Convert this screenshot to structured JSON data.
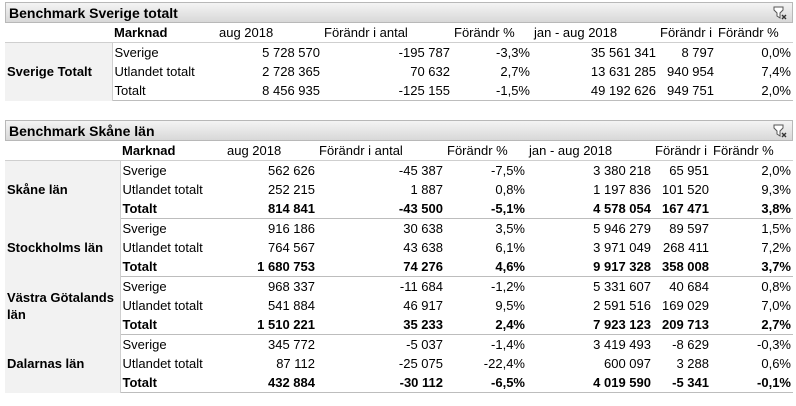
{
  "panel1": {
    "title": "Benchmark Sverige totalt",
    "headers": [
      "Marknad",
      "aug 2018",
      "Förändr i antal",
      "Förändr %",
      "jan - aug 2018",
      "Förändr i antal",
      "Förändr %"
    ],
    "section": "Sverige Totalt",
    "rows": [
      {
        "marknad": "Sverige",
        "c1": "5 728 570",
        "c2": "-195 787",
        "c3": "-3,3%",
        "c4": "35 561 341",
        "c5": "8 797",
        "c6": "0,0%"
      },
      {
        "marknad": "Utlandet totalt",
        "c1": "2 728 365",
        "c2": "70 632",
        "c3": "2,7%",
        "c4": "13 631 285",
        "c5": "940 954",
        "c6": "7,4%"
      },
      {
        "marknad": "Totalt",
        "c1": "8 456 935",
        "c2": "-125 155",
        "c3": "-1,5%",
        "c4": "49 192 626",
        "c5": "949 751",
        "c6": "2,0%"
      }
    ]
  },
  "panel2": {
    "title": "Benchmark Skåne län",
    "headers": [
      "Marknad",
      "aug 2018",
      "Förändr i antal",
      "Förändr %",
      "jan - aug 2018",
      "Förändr i antal",
      "Förändr %"
    ],
    "groups": [
      {
        "name": "Skåne län",
        "rows": [
          {
            "marknad": "Sverige",
            "c1": "562 626",
            "c2": "-45 387",
            "c3": "-7,5%",
            "c4": "3 380 218",
            "c5": "65 951",
            "c6": "2,0%"
          },
          {
            "marknad": "Utlandet totalt",
            "c1": "252 215",
            "c2": "1 887",
            "c3": "0,8%",
            "c4": "1 197 836",
            "c5": "101 520",
            "c6": "9,3%"
          },
          {
            "marknad": "Totalt",
            "c1": "814 841",
            "c2": "-43 500",
            "c3": "-5,1%",
            "c4": "4 578 054",
            "c5": "167 471",
            "c6": "3,8%"
          }
        ]
      },
      {
        "name": "Stockholms län",
        "rows": [
          {
            "marknad": "Sverige",
            "c1": "916 186",
            "c2": "30 638",
            "c3": "3,5%",
            "c4": "5 946 279",
            "c5": "89 597",
            "c6": "1,5%"
          },
          {
            "marknad": "Utlandet totalt",
            "c1": "764 567",
            "c2": "43 638",
            "c3": "6,1%",
            "c4": "3 971 049",
            "c5": "268 411",
            "c6": "7,2%"
          },
          {
            "marknad": "Totalt",
            "c1": "1 680 753",
            "c2": "74 276",
            "c3": "4,6%",
            "c4": "9 917 328",
            "c5": "358 008",
            "c6": "3,7%"
          }
        ]
      },
      {
        "name": "Västra Götalands län",
        "rows": [
          {
            "marknad": "Sverige",
            "c1": "968 337",
            "c2": "-11 684",
            "c3": "-1,2%",
            "c4": "5 331 607",
            "c5": "40 684",
            "c6": "0,8%"
          },
          {
            "marknad": "Utlandet totalt",
            "c1": "541 884",
            "c2": "46 917",
            "c3": "9,5%",
            "c4": "2 591 516",
            "c5": "169 029",
            "c6": "7,0%"
          },
          {
            "marknad": "Totalt",
            "c1": "1 510 221",
            "c2": "35 233",
            "c3": "2,4%",
            "c4": "7 923 123",
            "c5": "209 713",
            "c6": "2,7%"
          }
        ]
      },
      {
        "name": "Dalarnas län",
        "rows": [
          {
            "marknad": "Sverige",
            "c1": "345 772",
            "c2": "-5 037",
            "c3": "-1,4%",
            "c4": "3 419 493",
            "c5": "-8 629",
            "c6": "-0,3%"
          },
          {
            "marknad": "Utlandet totalt",
            "c1": "87 112",
            "c2": "-25 075",
            "c3": "-22,4%",
            "c4": "600 097",
            "c5": "3 288",
            "c6": "0,6%"
          },
          {
            "marknad": "Totalt",
            "c1": "432 884",
            "c2": "-30 112",
            "c3": "-6,5%",
            "c4": "4 019 590",
            "c5": "-5 341",
            "c6": "-0,1%"
          }
        ]
      }
    ]
  },
  "icons": {
    "clear_filter": "clear-filter-icon"
  }
}
